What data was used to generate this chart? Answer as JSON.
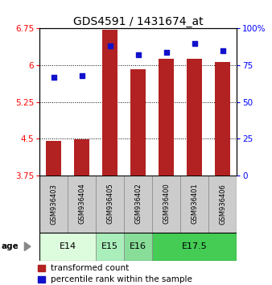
{
  "title": "GDS4591 / 1431674_at",
  "samples": [
    "GSM936403",
    "GSM936404",
    "GSM936405",
    "GSM936402",
    "GSM936400",
    "GSM936401",
    "GSM936406"
  ],
  "transformed_count": [
    4.45,
    4.48,
    6.72,
    5.92,
    6.13,
    6.13,
    6.07
  ],
  "percentile_rank": [
    67,
    68,
    88,
    82,
    84,
    90,
    85
  ],
  "bar_bottom": 3.75,
  "ylim_left": [
    3.75,
    6.75
  ],
  "ylim_right": [
    0,
    100
  ],
  "yticks_left": [
    3.75,
    4.5,
    5.25,
    6.0,
    6.75
  ],
  "yticks_right": [
    0,
    25,
    50,
    75,
    100
  ],
  "ytick_labels_left": [
    "3.75",
    "4.5",
    "5.25",
    "6",
    "6.75"
  ],
  "ytick_labels_right": [
    "0",
    "25",
    "50",
    "75",
    "100%"
  ],
  "bar_color": "#b22222",
  "dot_color": "#1111cc",
  "age_groups": [
    {
      "label": "E14",
      "samples": [
        "GSM936403",
        "GSM936404"
      ],
      "color": "#ddfcdd"
    },
    {
      "label": "E15",
      "samples": [
        "GSM936405"
      ],
      "color": "#aaeebb"
    },
    {
      "label": "E16",
      "samples": [
        "GSM936402"
      ],
      "color": "#88dd99"
    },
    {
      "label": "E17.5",
      "samples": [
        "GSM936400",
        "GSM936401",
        "GSM936406"
      ],
      "color": "#44cc55"
    }
  ],
  "age_label": "age",
  "legend_bar_label": "transformed count",
  "legend_dot_label": "percentile rank within the sample",
  "sample_box_color": "#cccccc",
  "title_fontsize": 10,
  "tick_fontsize": 7.5,
  "sample_fontsize": 6,
  "age_fontsize": 8,
  "legend_fontsize": 7.5
}
